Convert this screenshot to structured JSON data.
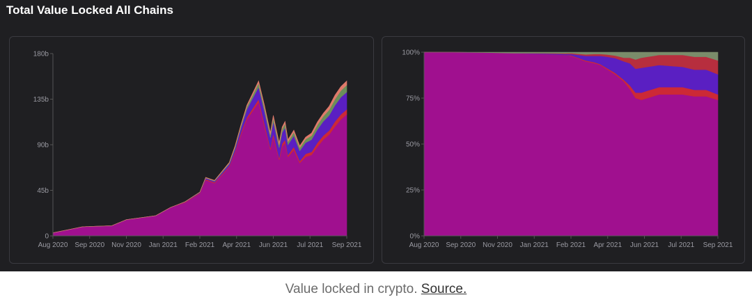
{
  "header": {
    "title": "Total Value Locked All Chains"
  },
  "caption": {
    "text": "Value locked in crypto.",
    "link_label": "Source."
  },
  "colors": {
    "background": "#1f1f22",
    "border": "#3a3a40",
    "tick_text": "#9a9aa2",
    "axis": "#555555"
  },
  "chart_data": [
    {
      "type": "area",
      "stacked": true,
      "title": "",
      "xlabel": "",
      "ylabel": "",
      "ylim": [
        0,
        180
      ],
      "y_ticks": [
        "0",
        "45b",
        "90b",
        "135b",
        "180b"
      ],
      "x_ticks": [
        "Aug 2020",
        "Sep 2020",
        "Nov 2020",
        "Jan 2021",
        "Feb 2021",
        "Apr 2021",
        "Jun 2021",
        "Jul 2021",
        "Sep 2021"
      ],
      "grid": false,
      "legend": "none",
      "x": [
        0,
        0.05,
        0.1,
        0.2,
        0.25,
        0.35,
        0.4,
        0.45,
        0.5,
        0.52,
        0.55,
        0.6,
        0.62,
        0.64,
        0.66,
        0.7,
        0.72,
        0.74,
        0.75,
        0.77,
        0.78,
        0.79,
        0.8,
        0.82,
        0.84,
        0.86,
        0.88,
        0.9,
        0.92,
        0.94,
        0.96,
        0.98,
        1.0
      ],
      "series": [
        {
          "color": "#a0108f",
          "values": [
            3,
            6,
            9,
            10,
            16,
            20,
            28,
            33,
            42,
            55,
            52,
            68,
            82,
            100,
            115,
            132,
            108,
            85,
            98,
            75,
            88,
            92,
            78,
            85,
            72,
            78,
            80,
            88,
            95,
            100,
            108,
            115,
            120
          ]
        },
        {
          "color": "#cc2936",
          "values": [
            0,
            0,
            0,
            0,
            0,
            0,
            0,
            0.5,
            0.5,
            1,
            1,
            1,
            1.5,
            2,
            2,
            3,
            3,
            2,
            3,
            2,
            3,
            3,
            2,
            3,
            2,
            3,
            3,
            4,
            4,
            4,
            5,
            5,
            5
          ]
        },
        {
          "color": "#5a1fc2",
          "values": [
            0,
            0,
            0,
            0,
            0,
            0,
            0,
            0.3,
            0.5,
            1,
            1,
            2,
            3,
            5,
            8,
            12,
            12,
            10,
            12,
            10,
            11,
            12,
            10,
            11,
            10,
            11,
            12,
            13,
            14,
            15,
            16,
            17,
            17
          ]
        },
        {
          "color": "#6b8f5a",
          "values": [
            0,
            0,
            0,
            0,
            0,
            0,
            0,
            0,
            0.3,
            0.5,
            0.5,
            1,
            1.5,
            2,
            2.5,
            4,
            4,
            3,
            4,
            3,
            3.5,
            4,
            3,
            3.5,
            3,
            3.5,
            4,
            4.5,
            5,
            5.5,
            6,
            6.5,
            7
          ]
        },
        {
          "color": "#e07a6b",
          "values": [
            0,
            0,
            0,
            0,
            0,
            0,
            0,
            0,
            0,
            0.3,
            0.3,
            0.5,
            1,
            1,
            1.5,
            2,
            2,
            2,
            2,
            2,
            2,
            2,
            2,
            2,
            2,
            2,
            2.5,
            3,
            3,
            3.5,
            4,
            4,
            4
          ]
        }
      ]
    },
    {
      "type": "area",
      "stacked": true,
      "normalized": true,
      "title": "",
      "xlabel": "",
      "ylabel": "",
      "ylim": [
        0,
        100
      ],
      "y_ticks": [
        "0%",
        "25%",
        "50%",
        "75%",
        "100%"
      ],
      "x_ticks": [
        "Aug 2020",
        "Sep 2020",
        "Nov 2020",
        "Jan 2021",
        "Feb 2021",
        "Apr 2021",
        "Jun 2021",
        "Jul 2021",
        "Sep 2021"
      ],
      "grid": false,
      "legend": "none",
      "x": [
        0,
        0.1,
        0.2,
        0.3,
        0.4,
        0.48,
        0.5,
        0.55,
        0.58,
        0.6,
        0.62,
        0.65,
        0.68,
        0.7,
        0.72,
        0.74,
        0.76,
        0.78,
        0.8,
        0.84,
        0.88,
        0.92,
        0.96,
        1.0
      ],
      "series": [
        {
          "color": "#a0108f",
          "values": [
            100,
            100,
            99.8,
            99.5,
            99,
            98.5,
            98,
            95,
            94,
            93,
            91,
            88,
            84,
            80,
            75,
            74,
            75,
            76,
            77,
            77,
            77,
            76,
            76,
            74
          ]
        },
        {
          "color": "#cc2936",
          "values": [
            0,
            0,
            0,
            0,
            0,
            0,
            0.3,
            0.5,
            0.5,
            0.5,
            0.6,
            0.8,
            1,
            2,
            3,
            4,
            4,
            4,
            4,
            4,
            4,
            3.5,
            3.5,
            3
          ]
        },
        {
          "color": "#5a1fc2",
          "values": [
            0,
            0,
            0,
            0,
            0.3,
            0.5,
            0.7,
            2.5,
            3.5,
            4.5,
            6,
            8,
            10,
            12,
            13,
            13.5,
            13,
            12.5,
            12,
            11.5,
            11,
            11,
            11,
            11
          ]
        },
        {
          "color": "#b72e3e",
          "values": [
            0,
            0,
            0,
            0,
            0.2,
            0.4,
            0.5,
            0.8,
            1,
            1,
            1.2,
            1.4,
            2,
            3,
            5,
            5.5,
            5.5,
            5.5,
            5.5,
            6,
            6.5,
            7,
            7,
            7.5
          ]
        },
        {
          "color": "#7a8c6a",
          "values": [
            0,
            0,
            0.2,
            0.5,
            0.5,
            0.6,
            0.5,
            1.2,
            1,
            1,
            1.2,
            1.8,
            3,
            3,
            4,
            3,
            2.5,
            2,
            1.5,
            1.5,
            1.5,
            2.5,
            2.5,
            4.5
          ]
        }
      ]
    }
  ]
}
